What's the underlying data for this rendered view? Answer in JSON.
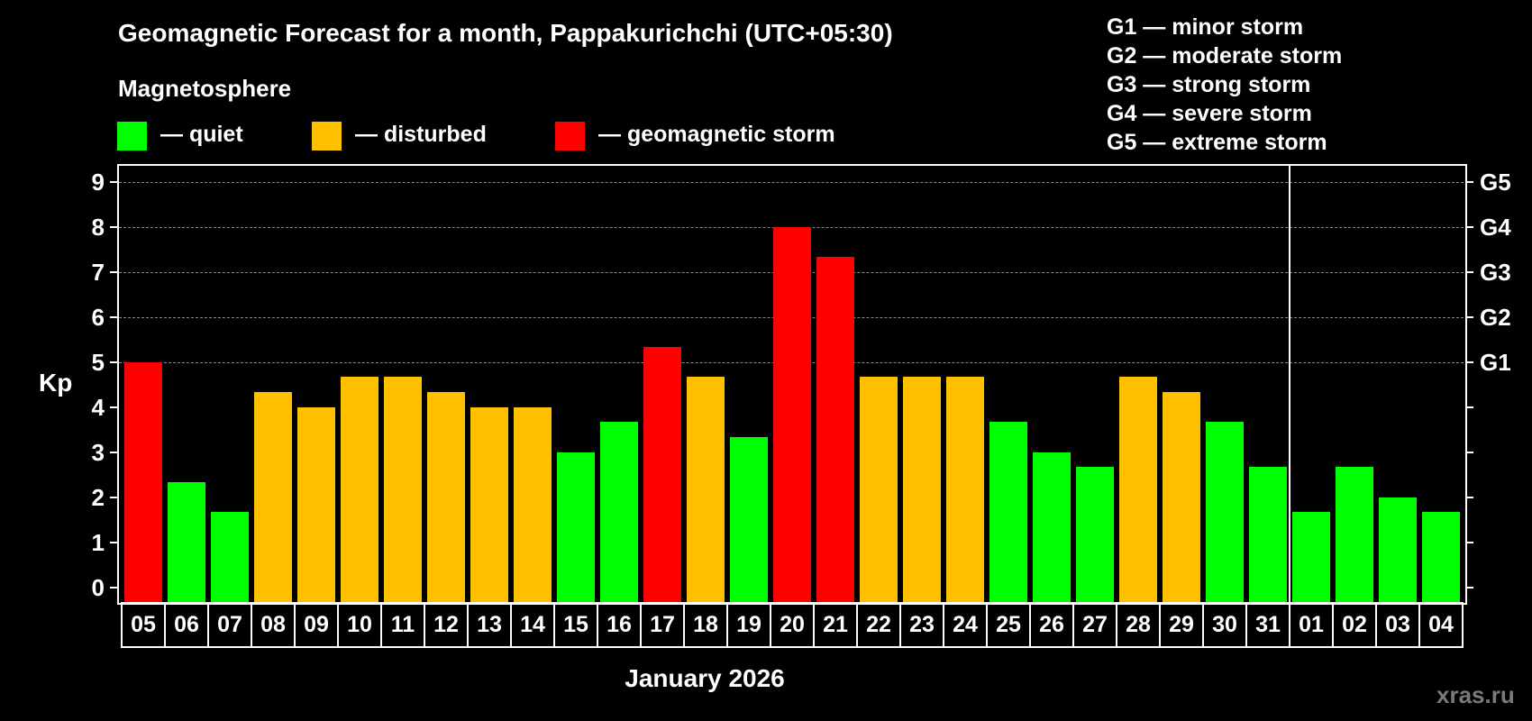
{
  "title": "Geomagnetic Forecast for a month, Pappakurichchi (UTC+05:30)",
  "subtitle": "Magnetosphere",
  "legend": [
    {
      "label": "— quiet",
      "color": "#00FF00"
    },
    {
      "label": "— disturbed",
      "color": "#FFC000"
    },
    {
      "label": "— geomagnetic storm",
      "color": "#FF0000"
    }
  ],
  "storm_levels": [
    {
      "label": "G1 — minor storm"
    },
    {
      "label": "G2 — moderate storm"
    },
    {
      "label": "G3 — strong storm"
    },
    {
      "label": "G4 — severe storm"
    },
    {
      "label": "G5 — extreme storm"
    }
  ],
  "y_axis": {
    "label": "Kp",
    "ticks": [
      "0",
      "1",
      "2",
      "3",
      "4",
      "5",
      "6",
      "7",
      "8",
      "9"
    ]
  },
  "right_axis": {
    "ticks": [
      {
        "value": 5,
        "label": "G1"
      },
      {
        "value": 6,
        "label": "G2"
      },
      {
        "value": 7,
        "label": "G3"
      },
      {
        "value": 8,
        "label": "G4"
      },
      {
        "value": 9,
        "label": "G5"
      }
    ]
  },
  "x_axis_label": "January 2026",
  "watermark": "xras.ru",
  "colors": {
    "quiet": "#00FF00",
    "disturbed": "#FFC000",
    "storm": "#FF0000",
    "background": "#000000",
    "grid": "#8a8a8a"
  },
  "chart_data": {
    "type": "bar",
    "title": "Geomagnetic Forecast for a month, Pappakurichchi (UTC+05:30)",
    "xlabel": "January 2026",
    "ylabel": "Kp",
    "ylim": [
      0,
      9
    ],
    "grid": "dashed horizontal at Kp 5-9",
    "legend_position": "top",
    "month_separator_after": "31",
    "categories": [
      "05",
      "06",
      "07",
      "08",
      "09",
      "10",
      "11",
      "12",
      "13",
      "14",
      "15",
      "16",
      "17",
      "18",
      "19",
      "20",
      "21",
      "22",
      "23",
      "24",
      "25",
      "26",
      "27",
      "28",
      "29",
      "30",
      "31",
      "01",
      "02",
      "03",
      "04"
    ],
    "values": [
      5.0,
      2.33,
      1.67,
      4.33,
      4.0,
      4.67,
      4.67,
      4.33,
      4.0,
      4.0,
      3.0,
      3.67,
      5.33,
      4.67,
      3.33,
      8.0,
      7.33,
      4.67,
      4.67,
      4.67,
      3.67,
      3.0,
      2.67,
      4.67,
      4.33,
      3.67,
      2.67,
      1.67,
      2.67,
      2.0,
      1.67
    ],
    "status": [
      "storm",
      "quiet",
      "quiet",
      "disturbed",
      "disturbed",
      "disturbed",
      "disturbed",
      "disturbed",
      "disturbed",
      "disturbed",
      "quiet",
      "quiet",
      "storm",
      "disturbed",
      "quiet",
      "storm",
      "storm",
      "disturbed",
      "disturbed",
      "disturbed",
      "quiet",
      "quiet",
      "quiet",
      "disturbed",
      "disturbed",
      "quiet",
      "quiet",
      "quiet",
      "quiet",
      "quiet",
      "quiet"
    ],
    "right_axis_labels": {
      "5": "G1",
      "6": "G2",
      "7": "G3",
      "8": "G4",
      "9": "G5"
    }
  }
}
